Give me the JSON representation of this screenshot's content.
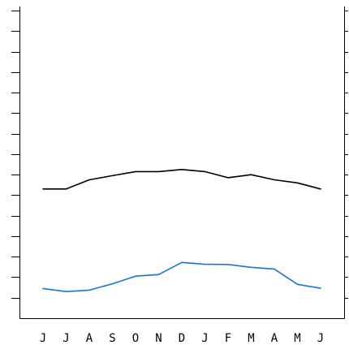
{
  "chart_data": {
    "type": "line",
    "title": "",
    "xlabel": "",
    "ylabel": "",
    "grid": false,
    "legend": "none",
    "categories": [
      "J",
      "J",
      "A",
      "S",
      "O",
      "N",
      "D",
      "J",
      "F",
      "M",
      "A",
      "M",
      "J"
    ],
    "y_ticks": [
      1,
      2,
      3,
      4,
      5,
      6,
      7,
      8,
      9,
      10,
      11,
      12,
      13,
      14,
      15
    ],
    "ylim": [
      0,
      15.2
    ],
    "y_tick_labels_shown": false,
    "series": [
      {
        "color": "#000000",
        "values": [
          6.3,
          6.3,
          6.75,
          6.95,
          7.15,
          7.15,
          7.25,
          7.15,
          6.85,
          7.0,
          6.75,
          6.6,
          6.3
        ]
      },
      {
        "color": "#1a73d9",
        "values": [
          1.45,
          1.3,
          1.37,
          1.68,
          2.05,
          2.13,
          2.72,
          2.63,
          2.62,
          2.48,
          2.4,
          1.65,
          1.46
        ]
      }
    ]
  }
}
